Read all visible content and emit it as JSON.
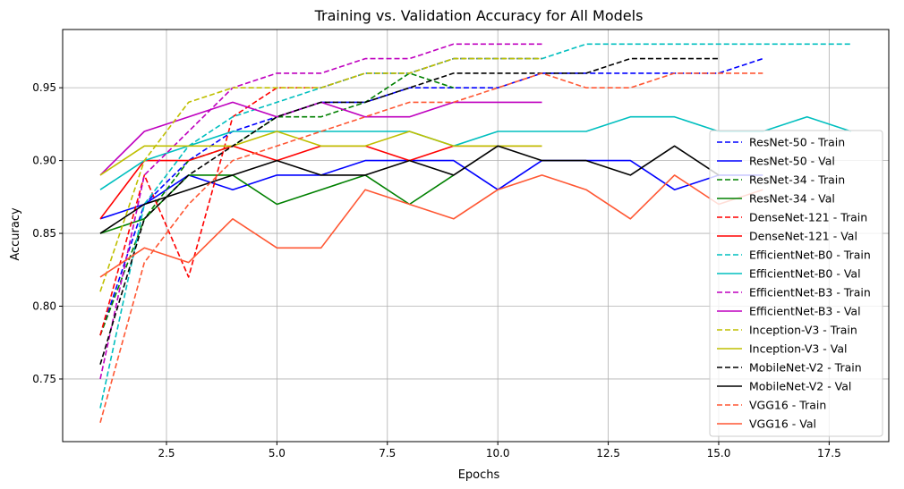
{
  "chart_data": {
    "type": "line",
    "title": "Training vs. Validation Accuracy for All Models",
    "xlabel": "Epochs",
    "ylabel": "Accuracy",
    "xlim": [
      0.15,
      18.85
    ],
    "ylim": [
      0.707,
      0.99
    ],
    "xticks": [
      2.5,
      5.0,
      7.5,
      10.0,
      12.5,
      15.0,
      17.5
    ],
    "xtick_labels": [
      "2.5",
      "5.0",
      "7.5",
      "10.0",
      "12.5",
      "15.0",
      "17.5"
    ],
    "yticks": [
      0.75,
      0.8,
      0.85,
      0.9,
      0.95
    ],
    "ytick_labels": [
      "0.75",
      "0.80",
      "0.85",
      "0.90",
      "0.95"
    ],
    "grid": true,
    "legend_position": "right",
    "series": [
      {
        "name": "ResNet-50 - Train",
        "color": "#0000ff",
        "dash": "dashed",
        "x": [
          1,
          2,
          3,
          4,
          5,
          6,
          7,
          8,
          9,
          10,
          11,
          12,
          13,
          14,
          15,
          16
        ],
        "y": [
          0.78,
          0.87,
          0.9,
          0.92,
          0.93,
          0.94,
          0.94,
          0.95,
          0.95,
          0.95,
          0.96,
          0.96,
          0.96,
          0.96,
          0.96,
          0.97
        ]
      },
      {
        "name": "ResNet-50 - Val",
        "color": "#0000ff",
        "dash": "solid",
        "x": [
          1,
          2,
          3,
          4,
          5,
          6,
          7,
          8,
          9,
          10,
          11,
          12,
          13,
          14,
          15,
          16
        ],
        "y": [
          0.86,
          0.87,
          0.89,
          0.88,
          0.89,
          0.89,
          0.9,
          0.9,
          0.9,
          0.88,
          0.9,
          0.9,
          0.9,
          0.88,
          0.89,
          0.89
        ]
      },
      {
        "name": "ResNet-34 - Train",
        "color": "#008000",
        "dash": "dashed",
        "x": [
          1,
          2,
          3,
          4,
          5,
          6,
          7,
          8,
          9
        ],
        "y": [
          0.78,
          0.86,
          0.9,
          0.91,
          0.93,
          0.93,
          0.94,
          0.96,
          0.95
        ]
      },
      {
        "name": "ResNet-34 - Val",
        "color": "#008000",
        "dash": "solid",
        "x": [
          1,
          2,
          3,
          4,
          5,
          6,
          7,
          8,
          9
        ],
        "y": [
          0.85,
          0.86,
          0.89,
          0.89,
          0.87,
          0.88,
          0.89,
          0.87,
          0.89
        ]
      },
      {
        "name": "DenseNet-121 - Train",
        "color": "#ff0000",
        "dash": "dashed",
        "x": [
          1,
          2,
          3,
          4,
          5,
          6,
          7,
          8,
          9,
          10,
          11
        ],
        "y": [
          0.78,
          0.89,
          0.82,
          0.93,
          0.95,
          0.95,
          0.96,
          0.96,
          0.97,
          0.97,
          0.97
        ]
      },
      {
        "name": "DenseNet-121 - Val",
        "color": "#ff0000",
        "dash": "solid",
        "x": [
          1,
          2,
          3,
          4,
          5,
          6,
          7,
          8,
          9,
          10,
          11
        ],
        "y": [
          0.86,
          0.9,
          0.9,
          0.91,
          0.9,
          0.91,
          0.91,
          0.9,
          0.91,
          0.91,
          0.91
        ]
      },
      {
        "name": "EfficientNet-B0 - Train",
        "color": "#00bfbf",
        "dash": "dashed",
        "x": [
          1,
          2,
          3,
          4,
          5,
          6,
          7,
          8,
          9,
          10,
          11,
          12,
          13,
          14,
          15,
          16,
          17,
          18
        ],
        "y": [
          0.73,
          0.87,
          0.91,
          0.93,
          0.94,
          0.95,
          0.96,
          0.96,
          0.97,
          0.97,
          0.97,
          0.98,
          0.98,
          0.98,
          0.98,
          0.98,
          0.98,
          0.98
        ]
      },
      {
        "name": "EfficientNet-B0 - Val",
        "color": "#00bfbf",
        "dash": "solid",
        "x": [
          1,
          2,
          3,
          4,
          5,
          6,
          7,
          8,
          9,
          10,
          11,
          12,
          13,
          14,
          15,
          16,
          17,
          18
        ],
        "y": [
          0.88,
          0.9,
          0.91,
          0.92,
          0.92,
          0.92,
          0.92,
          0.92,
          0.91,
          0.92,
          0.92,
          0.92,
          0.93,
          0.93,
          0.92,
          0.92,
          0.93,
          0.92
        ]
      },
      {
        "name": "EfficientNet-B3 - Train",
        "color": "#bf00bf",
        "dash": "dashed",
        "x": [
          1,
          2,
          3,
          4,
          5,
          6,
          7,
          8,
          9,
          10,
          11
        ],
        "y": [
          0.75,
          0.89,
          0.92,
          0.95,
          0.96,
          0.96,
          0.97,
          0.97,
          0.98,
          0.98,
          0.98
        ]
      },
      {
        "name": "EfficientNet-B3 - Val",
        "color": "#bf00bf",
        "dash": "solid",
        "x": [
          1,
          2,
          3,
          4,
          5,
          6,
          7,
          8,
          9,
          10,
          11
        ],
        "y": [
          0.89,
          0.92,
          0.93,
          0.94,
          0.93,
          0.94,
          0.93,
          0.93,
          0.94,
          0.94,
          0.94
        ]
      },
      {
        "name": "Inception-V3 - Train",
        "color": "#bfbf00",
        "dash": "dashed",
        "x": [
          1,
          2,
          3,
          4,
          5,
          6,
          7,
          8,
          9,
          10,
          11
        ],
        "y": [
          0.81,
          0.9,
          0.94,
          0.95,
          0.95,
          0.95,
          0.96,
          0.96,
          0.97,
          0.97,
          0.97
        ]
      },
      {
        "name": "Inception-V3 - Val",
        "color": "#bfbf00",
        "dash": "solid",
        "x": [
          1,
          2,
          3,
          4,
          5,
          6,
          7,
          8,
          9,
          10,
          11
        ],
        "y": [
          0.89,
          0.91,
          0.91,
          0.91,
          0.92,
          0.91,
          0.91,
          0.92,
          0.91,
          0.91,
          0.91
        ]
      },
      {
        "name": "MobileNet-V2 - Train",
        "color": "#000000",
        "dash": "dashed",
        "x": [
          1,
          2,
          3,
          4,
          5,
          6,
          7,
          8,
          9,
          10,
          11,
          12,
          13,
          14,
          15
        ],
        "y": [
          0.76,
          0.86,
          0.89,
          0.91,
          0.93,
          0.94,
          0.94,
          0.95,
          0.96,
          0.96,
          0.96,
          0.96,
          0.97,
          0.97,
          0.97
        ]
      },
      {
        "name": "MobileNet-V2 - Val",
        "color": "#000000",
        "dash": "solid",
        "x": [
          1,
          2,
          3,
          4,
          5,
          6,
          7,
          8,
          9,
          10,
          11,
          12,
          13,
          14,
          15
        ],
        "y": [
          0.85,
          0.87,
          0.88,
          0.89,
          0.9,
          0.89,
          0.89,
          0.9,
          0.89,
          0.91,
          0.9,
          0.9,
          0.89,
          0.91,
          0.89
        ]
      },
      {
        "name": "VGG16 - Train",
        "color": "#ff5733",
        "dash": "dashed",
        "x": [
          1,
          2,
          3,
          4,
          5,
          6,
          7,
          8,
          9,
          10,
          11,
          12,
          13,
          14,
          15,
          16
        ],
        "y": [
          0.72,
          0.83,
          0.87,
          0.9,
          0.91,
          0.92,
          0.93,
          0.94,
          0.94,
          0.95,
          0.96,
          0.95,
          0.95,
          0.96,
          0.96,
          0.96
        ]
      },
      {
        "name": "VGG16 - Val",
        "color": "#ff5733",
        "dash": "solid",
        "x": [
          1,
          2,
          3,
          4,
          5,
          6,
          7,
          8,
          9,
          10,
          11,
          12,
          13,
          14,
          15,
          16
        ],
        "y": [
          0.82,
          0.84,
          0.83,
          0.86,
          0.84,
          0.84,
          0.88,
          0.87,
          0.86,
          0.88,
          0.89,
          0.88,
          0.86,
          0.89,
          0.87,
          0.88
        ]
      }
    ]
  }
}
